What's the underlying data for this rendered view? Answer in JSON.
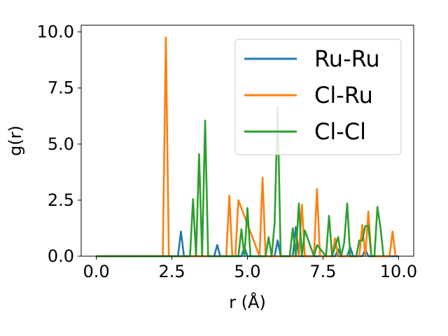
{
  "chart_data": {
    "type": "line",
    "xlabel": "r (Å)",
    "ylabel": "g(r)",
    "xlim": [
      -0.5,
      10.5
    ],
    "ylim": [
      0,
      10.3
    ],
    "xticks": [
      0.0,
      2.5,
      5.0,
      7.5,
      10.0
    ],
    "xtick_labels": [
      "0.0",
      "2.5",
      "5.0",
      "7.5",
      "10.0"
    ],
    "yticks": [
      0.0,
      2.5,
      5.0,
      7.5,
      10.0
    ],
    "ytick_labels": [
      "0.0",
      "2.5",
      "5.0",
      "7.5",
      "10.0"
    ],
    "grid": false,
    "legend_position": "top-right",
    "series": [
      {
        "name": "Ru-Ru",
        "color": "#1f77b4",
        "x": [
          0.0,
          2.7,
          2.8,
          2.9,
          3.9,
          4.0,
          4.1,
          4.8,
          4.9,
          5.0,
          5.9,
          6.0,
          6.1,
          6.5,
          6.6,
          6.7,
          7.9,
          8.0,
          8.1,
          8.3,
          8.4,
          8.5,
          8.8,
          8.9,
          9.0,
          10.0
        ],
        "y": [
          0.0,
          0.0,
          1.1,
          0.0,
          0.0,
          0.5,
          0.0,
          0.0,
          0.4,
          0.0,
          0.0,
          0.7,
          0.0,
          0.0,
          1.3,
          0.0,
          0.0,
          0.3,
          0.0,
          0.0,
          0.4,
          0.0,
          0.0,
          0.3,
          0.0,
          0.0
        ]
      },
      {
        "name": "Cl-Ru",
        "color": "#ff7f0e",
        "x": [
          0.0,
          2.2,
          2.3,
          2.4,
          4.3,
          4.4,
          4.5,
          4.6,
          4.7,
          5.4,
          5.5,
          5.6,
          6.7,
          6.8,
          6.9,
          7.2,
          7.3,
          7.4,
          7.8,
          7.9,
          8.0,
          8.7,
          8.8,
          8.9,
          9.0,
          9.1,
          9.7,
          9.8,
          9.9
        ],
        "y": [
          0.0,
          0.0,
          9.75,
          0.0,
          0.0,
          2.7,
          0.0,
          0.0,
          2.5,
          0.0,
          3.5,
          0.0,
          0.0,
          2.3,
          0.0,
          0.0,
          3.0,
          0.0,
          0.0,
          0.8,
          0.0,
          0.0,
          1.4,
          0.0,
          2.0,
          0.0,
          0.0,
          1.1,
          0.0
        ]
      },
      {
        "name": "Cl-Cl",
        "color": "#2ca02c",
        "x": [
          0.0,
          3.1,
          3.2,
          3.3,
          3.4,
          3.5,
          3.6,
          3.7,
          4.7,
          4.8,
          4.9,
          5.0,
          5.1,
          5.6,
          5.7,
          5.8,
          5.9,
          6.0,
          6.1,
          6.4,
          6.5,
          6.6,
          6.7,
          6.8,
          6.9,
          7.2,
          7.3,
          7.6,
          7.7,
          7.8,
          8.0,
          8.1,
          8.2,
          8.3,
          8.4,
          8.6,
          8.7,
          8.8,
          8.9,
          9.0,
          9.1,
          9.2,
          9.3,
          9.4,
          9.5
        ],
        "y": [
          0.0,
          0.0,
          2.55,
          0.0,
          4.55,
          0.0,
          6.05,
          0.0,
          0.0,
          1.2,
          0.0,
          2.15,
          0.0,
          0.0,
          0.85,
          0.0,
          1.5,
          6.65,
          0.0,
          0.0,
          1.25,
          0.0,
          2.35,
          0.0,
          1.15,
          0.0,
          0.5,
          0.0,
          1.8,
          0.0,
          0.85,
          0.0,
          0.6,
          2.35,
          0.0,
          0.0,
          0.7,
          0.7,
          1.35,
          1.35,
          0.0,
          0.0,
          2.2,
          1.3,
          0.0
        ]
      }
    ]
  }
}
